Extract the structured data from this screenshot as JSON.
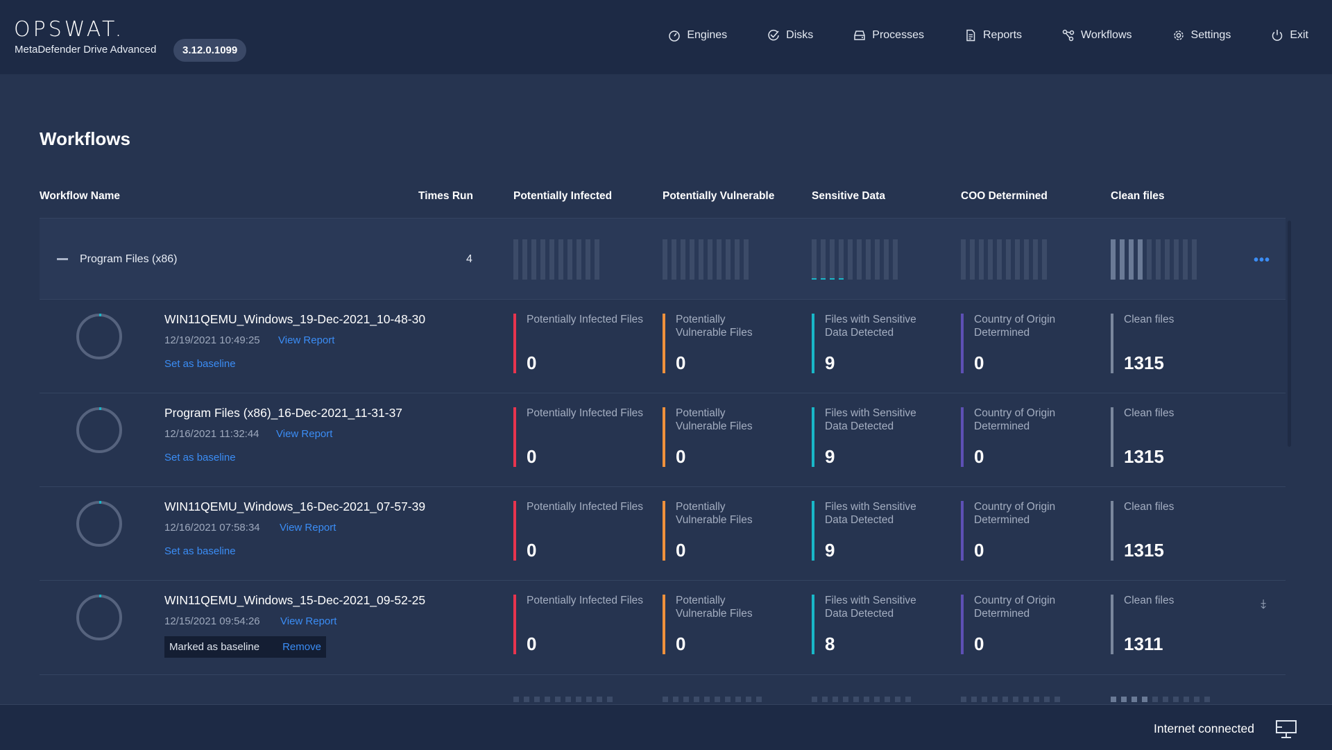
{
  "header": {
    "logo_text": "OPSWAT.",
    "product_name": "MetaDefender Drive Advanced",
    "version": "3.12.0.1099",
    "nav": [
      {
        "label": "Engines",
        "icon": "gauge-icon"
      },
      {
        "label": "Disks",
        "icon": "check-badge-icon"
      },
      {
        "label": "Processes",
        "icon": "drive-icon"
      },
      {
        "label": "Reports",
        "icon": "document-icon"
      },
      {
        "label": "Workflows",
        "icon": "workflow-icon"
      },
      {
        "label": "Settings",
        "icon": "gear-icon"
      },
      {
        "label": "Exit",
        "icon": "power-icon"
      }
    ]
  },
  "page": {
    "title": "Workflows"
  },
  "table": {
    "columns": [
      "Workflow Name",
      "Times Run",
      "Potentially Infected",
      "Potentially Vulnerable",
      "Sensitive Data",
      "COO Determined",
      "Clean files"
    ],
    "group": {
      "name": "Program Files (x86)",
      "times_run": "4"
    },
    "runs": [
      {
        "name": "WIN11QEMU_Windows_19-Dec-2021_10-48-30",
        "date": "12/19/2021 10:49:25",
        "view_report": "View Report",
        "baseline_action": "Set as baseline",
        "metrics": [
          {
            "label": "Potentially Infected Files",
            "value": "0"
          },
          {
            "label": "Potentially Vulnerable Files",
            "value": "0"
          },
          {
            "label": "Files with Sensitive Data Detected",
            "value": "9"
          },
          {
            "label": "Country of Origin Determined",
            "value": "0"
          },
          {
            "label": "Clean files",
            "value": "1315"
          }
        ]
      },
      {
        "name": "Program Files (x86)_16-Dec-2021_11-31-37",
        "date": "12/16/2021 11:32:44",
        "view_report": "View Report",
        "baseline_action": "Set as baseline",
        "metrics": [
          {
            "label": "Potentially Infected Files",
            "value": "0"
          },
          {
            "label": "Potentially Vulnerable Files",
            "value": "0"
          },
          {
            "label": "Files with Sensitive Data Detected",
            "value": "9"
          },
          {
            "label": "Country of Origin Determined",
            "value": "0"
          },
          {
            "label": "Clean files",
            "value": "1315"
          }
        ]
      },
      {
        "name": "WIN11QEMU_Windows_16-Dec-2021_07-57-39",
        "date": "12/16/2021 07:58:34",
        "view_report": "View Report",
        "baseline_action": "Set as baseline",
        "metrics": [
          {
            "label": "Potentially Infected Files",
            "value": "0"
          },
          {
            "label": "Potentially Vulnerable Files",
            "value": "0"
          },
          {
            "label": "Files with Sensitive Data Detected",
            "value": "9"
          },
          {
            "label": "Country of Origin Determined",
            "value": "0"
          },
          {
            "label": "Clean files",
            "value": "1315"
          }
        ]
      },
      {
        "name": "WIN11QEMU_Windows_15-Dec-2021_09-52-25",
        "date": "12/15/2021 09:54:26",
        "view_report": "View Report",
        "baseline_status": "Marked as baseline",
        "baseline_remove": "Remove",
        "metrics": [
          {
            "label": "Potentially Infected Files",
            "value": "0"
          },
          {
            "label": "Potentially Vulnerable Files",
            "value": "0"
          },
          {
            "label": "Files with Sensitive Data Detected",
            "value": "8"
          },
          {
            "label": "Country of Origin Determined",
            "value": "0"
          },
          {
            "label": "Clean files",
            "value": "1311"
          }
        ]
      }
    ]
  },
  "metric_colors": [
    "#e8344e",
    "#f0913c",
    "#19b7c8",
    "#5d50b4",
    "#7a879d"
  ],
  "footer": {
    "status": "Internet connected",
    "icon": "monitor-icon"
  }
}
